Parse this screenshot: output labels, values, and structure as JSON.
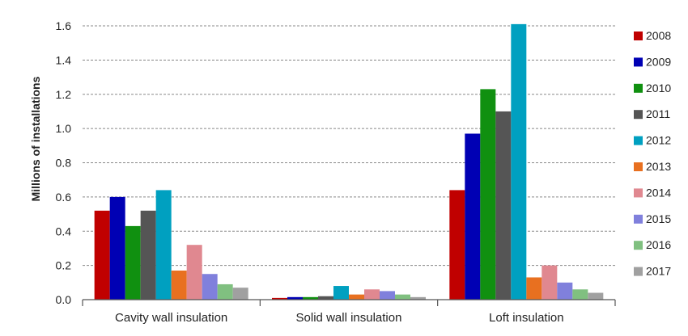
{
  "chart_data": {
    "type": "bar",
    "title": "",
    "xlabel": "",
    "ylabel": "Millions of installations",
    "ylim": [
      0,
      1.6
    ],
    "yticks": [
      "0.0",
      "0.2",
      "0.4",
      "0.6",
      "0.8",
      "1.0",
      "1.2",
      "1.4",
      "1.6"
    ],
    "grid": true,
    "legend_position": "right",
    "categories": [
      "Cavity wall insulation",
      "Solid wall insulation",
      "Loft insulation"
    ],
    "series": [
      {
        "name": "2008",
        "color": "#c00000",
        "values": [
          0.52,
          0.01,
          0.64
        ]
      },
      {
        "name": "2009",
        "color": "#0000b4",
        "values": [
          0.6,
          0.015,
          0.97
        ]
      },
      {
        "name": "2010",
        "color": "#109010",
        "values": [
          0.43,
          0.015,
          1.23
        ]
      },
      {
        "name": "2011",
        "color": "#555555",
        "values": [
          0.52,
          0.02,
          1.1
        ]
      },
      {
        "name": "2012",
        "color": "#00a0c0",
        "values": [
          0.64,
          0.08,
          1.61
        ]
      },
      {
        "name": "2013",
        "color": "#e87020",
        "values": [
          0.17,
          0.03,
          0.13
        ]
      },
      {
        "name": "2014",
        "color": "#e08890",
        "values": [
          0.32,
          0.06,
          0.2
        ]
      },
      {
        "name": "2015",
        "color": "#8080dc",
        "values": [
          0.15,
          0.05,
          0.1
        ]
      },
      {
        "name": "2016",
        "color": "#80c080",
        "values": [
          0.09,
          0.03,
          0.06
        ]
      },
      {
        "name": "2017",
        "color": "#a0a0a0",
        "values": [
          0.07,
          0.015,
          0.04
        ]
      }
    ]
  }
}
